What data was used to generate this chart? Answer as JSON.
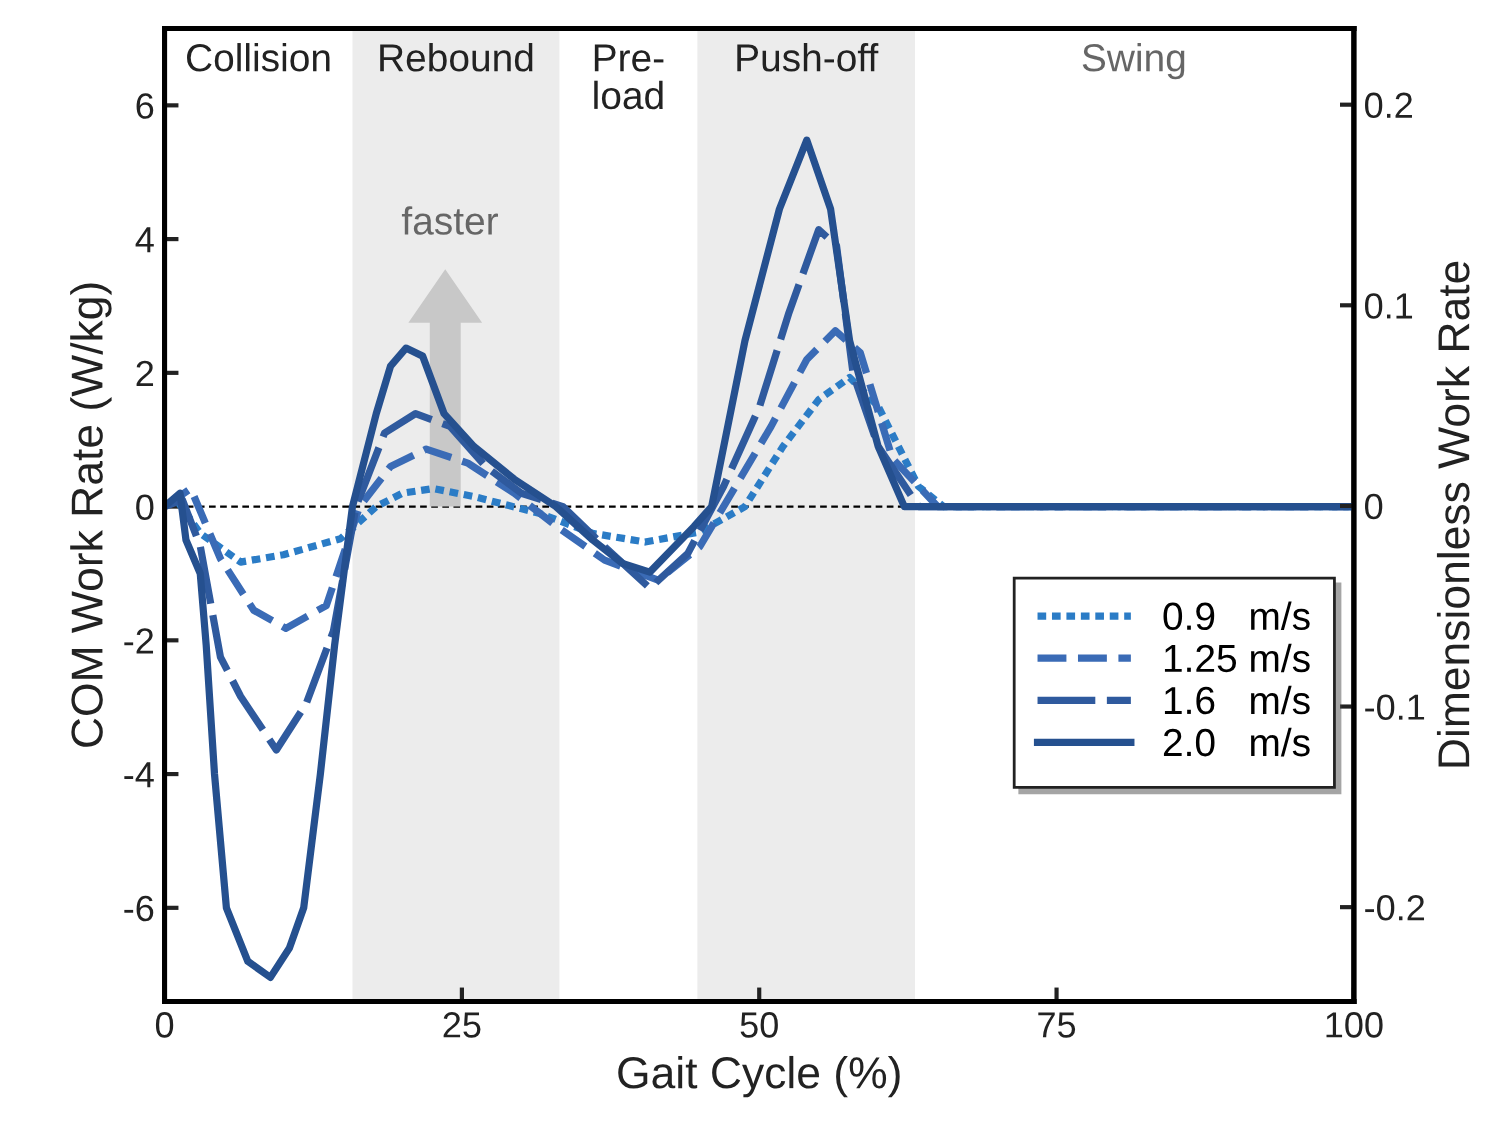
{
  "chart_data": {
    "type": "line",
    "xlabel": "Gait Cycle (%)",
    "ylabel": "COM Work Rate (W/kg)",
    "y2label": "Dimensionless Work Rate",
    "xlim": [
      0,
      100
    ],
    "xticks": [
      0,
      25,
      50,
      75,
      100
    ],
    "ylim": [
      -7.4,
      7.15
    ],
    "yticks": [
      -6,
      -4,
      -2,
      0,
      2,
      4,
      6
    ],
    "y2lim": [
      -0.247,
      0.238
    ],
    "y2ticks": [
      -0.2,
      -0.1,
      0,
      0.1,
      0.2
    ],
    "grid": false,
    "legend": "lower right",
    "marker": "none",
    "series": [
      {
        "name": "0.9   m/s",
        "color": "#2b7cc6",
        "line_style": "dotted",
        "x": [
          0,
          1,
          3,
          6.4,
          10,
          14.8,
          17.8,
          20,
          22.6,
          26,
          31.5,
          36,
          40.4,
          45,
          48.8,
          52,
          55,
          57.6,
          60,
          63.4,
          65.5,
          70,
          80,
          100
        ],
        "values": [
          0,
          0.1,
          -0.4,
          -0.83,
          -0.72,
          -0.48,
          0,
          0.2,
          0.27,
          0.15,
          -0.1,
          -0.4,
          -0.53,
          -0.38,
          0,
          0.9,
          1.6,
          1.93,
          1.5,
          0.3,
          0,
          0,
          0,
          0
        ]
      },
      {
        "name": "1.25 m/s",
        "color": "#3a6bb6",
        "line_style": "dashed",
        "x": [
          0,
          2.2,
          4.7,
          7.5,
          10.2,
          13.6,
          16.4,
          19,
          22,
          25.5,
          29.4,
          33,
          37,
          41.5,
          45,
          48,
          51,
          54,
          56.4,
          58.5,
          61.2,
          65,
          70,
          80,
          100
        ],
        "values": [
          0,
          0.27,
          -0.78,
          -1.55,
          -1.82,
          -1.48,
          0,
          0.6,
          0.86,
          0.65,
          0.2,
          -0.3,
          -0.8,
          -1.1,
          -0.6,
          0.3,
          1.2,
          2.2,
          2.63,
          2.3,
          0.72,
          0,
          0,
          0,
          0
        ]
      },
      {
        "name": "1.6   m/s",
        "color": "#2f5a9e",
        "line_style": "longdash",
        "x": [
          0,
          1.5,
          3,
          4.7,
          6.4,
          9.4,
          11.9,
          14.2,
          16.1,
          18.5,
          21.1,
          24,
          27,
          30,
          33.5,
          37,
          40.8,
          44,
          47,
          50,
          52.5,
          55,
          56.5,
          57.9,
          60,
          63.4,
          70,
          80,
          100
        ],
        "values": [
          0,
          0.1,
          -0.59,
          -2.25,
          -2.84,
          -3.64,
          -2.95,
          -1.86,
          0,
          1.1,
          1.39,
          1.2,
          0.6,
          0.2,
          0,
          -0.6,
          -1.22,
          -0.7,
          0.3,
          1.48,
          2.9,
          4.14,
          3.9,
          1.98,
          0.9,
          0,
          0,
          0,
          0
        ]
      },
      {
        "name": "2.0   m/s",
        "color": "#25508f",
        "line_style": "solid",
        "x": [
          0,
          1.3,
          1.8,
          3,
          3.5,
          4.2,
          5.2,
          7,
          8.9,
          10.5,
          11.7,
          13.1,
          14.3,
          15.8,
          17.8,
          19,
          20.3,
          21.7,
          23.5,
          26,
          29.4,
          32.9,
          36,
          38.5,
          40.8,
          44.5,
          46,
          48.8,
          51.7,
          54,
          56,
          57.6,
          60,
          62.2,
          64,
          70,
          80,
          100
        ],
        "values": [
          0,
          0.2,
          -0.5,
          -1.0,
          -2.07,
          -4.0,
          -6.0,
          -6.8,
          -7.04,
          -6.6,
          -6.0,
          -4.0,
          -2.07,
          0,
          1.39,
          2.1,
          2.37,
          2.25,
          1.39,
          0.9,
          0.41,
          0,
          -0.5,
          -0.85,
          -0.98,
          -0.3,
          0,
          2.48,
          4.45,
          5.48,
          4.45,
          2.48,
          0.9,
          0,
          0,
          0,
          0,
          0
        ]
      }
    ],
    "ref_lines": [
      {
        "axis": "y",
        "value": 0,
        "color": "#000000",
        "line_style": "dashed"
      }
    ],
    "bands": [
      {
        "axis": "x",
        "from": 15.8,
        "to": 33.2,
        "label": "Rebound",
        "color": "#ececec"
      },
      {
        "axis": "x",
        "from": 44.8,
        "to": 63.1,
        "label": "Push-off",
        "color": "#ececec"
      }
    ],
    "annotations": [
      "Collision",
      "Pre-\nload",
      "Swing",
      "faster"
    ]
  }
}
